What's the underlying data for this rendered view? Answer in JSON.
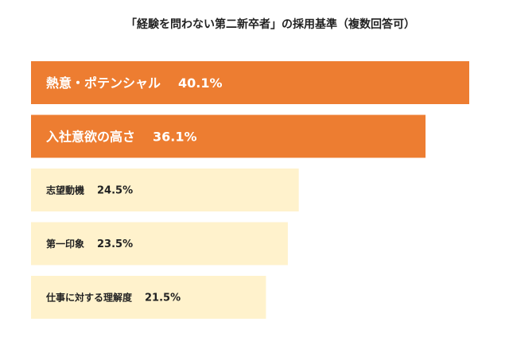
{
  "chart_data": {
    "type": "bar",
    "orientation": "horizontal",
    "title": "「経験を問わない第二新卒者」の採用基準（複数回答可）",
    "categories": [
      "熱意・ポテンシャル",
      "入社意欲の高さ",
      "志望動機",
      "第一印象",
      "仕事に対する理解度"
    ],
    "values": [
      40.1,
      36.1,
      24.5,
      23.5,
      21.5
    ],
    "value_labels": [
      "40.1%",
      "36.1%",
      "24.5%",
      "23.5%",
      "21.5%"
    ],
    "highlight_count": 2,
    "xlim": [
      0,
      40.1
    ],
    "xlabel": "",
    "ylabel": "",
    "grid": false,
    "legend": "none"
  },
  "colors": {
    "highlight_bar": "#ED7D31",
    "normal_bar": "#FFF2CC",
    "highlight_text": "#FFFFFF",
    "normal_text": "#222222"
  }
}
